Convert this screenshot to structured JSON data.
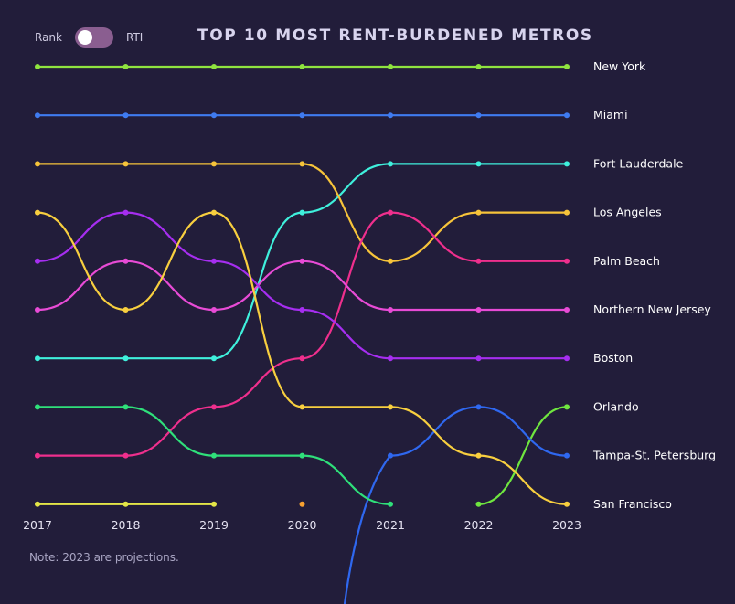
{
  "toggle": {
    "left_label": "Rank",
    "right_label": "RTI",
    "selected": "Rank"
  },
  "title": "TOP 10 MOST RENT-BURDENED METROS",
  "note": "Note: 2023 are projections.",
  "chart_data": {
    "type": "line",
    "subtype": "bump",
    "title": "TOP 10 MOST RENT-BURDENED METROS",
    "x": [
      "2017",
      "2018",
      "2019",
      "2020",
      "2021",
      "2022",
      "2023"
    ],
    "ylim": [
      1,
      10
    ],
    "y_inverted": true,
    "ylabel": "",
    "xlabel": "",
    "grid": false,
    "legend": "series labels at right end",
    "series": [
      {
        "name": "New York",
        "color": "#8fe43f",
        "values": [
          1,
          1,
          1,
          1,
          1,
          1,
          1
        ]
      },
      {
        "name": "Miami",
        "color": "#3f7bf0",
        "values": [
          2,
          2,
          2,
          2,
          2,
          2,
          2
        ]
      },
      {
        "name": "Fort Lauderdale",
        "color": "#3ff0dc",
        "values": [
          7,
          7,
          7,
          4,
          3,
          3,
          3
        ]
      },
      {
        "name": "Los Angeles",
        "color": "#f7c43a",
        "values": [
          3,
          3,
          3,
          3,
          5,
          4,
          4
        ]
      },
      {
        "name": "Palm Beach",
        "color": "#ef2f8d",
        "values": [
          9,
          9,
          8,
          7,
          4,
          5,
          5
        ]
      },
      {
        "name": "Northern New Jersey",
        "color": "#e84bd6",
        "values": [
          6,
          5,
          6,
          5,
          6,
          6,
          6
        ]
      },
      {
        "name": "Boston",
        "color": "#a62ef0",
        "values": [
          5,
          4,
          5,
          6,
          7,
          7,
          7
        ]
      },
      {
        "name": "Orlando",
        "color": "#6fe63f",
        "values": [
          null,
          null,
          null,
          null,
          null,
          10,
          8
        ]
      },
      {
        "name": "Tampa-St. Petersburg",
        "color": "#2f68f0",
        "values": [
          null,
          null,
          null,
          null,
          9,
          8,
          9
        ]
      },
      {
        "name": "San Francisco",
        "color": "#f8cf3f",
        "values": [
          4,
          6,
          4,
          8,
          8,
          9,
          10
        ]
      },
      {
        "name": "",
        "color": "#2fe07a",
        "values": [
          8,
          8,
          9,
          9,
          10,
          null,
          null
        ]
      },
      {
        "name": "",
        "color": "#e4e647",
        "values": [
          10,
          10,
          10,
          null,
          null,
          null,
          null
        ]
      },
      {
        "name": "",
        "color": "#f7a030",
        "values": [
          null,
          null,
          null,
          10,
          null,
          null,
          null
        ]
      }
    ]
  }
}
